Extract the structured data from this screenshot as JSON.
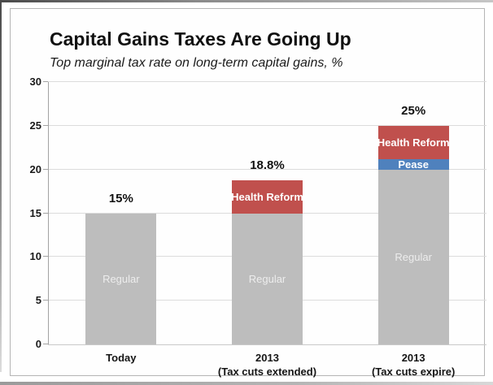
{
  "page": {
    "title": "Capital Gains Taxes Are Going Up",
    "subtitle": "Top marginal tax rate on long-term capital gains, %"
  },
  "colors": {
    "regular_bar": "#BDBDBD",
    "pease_bar": "#4F81BD",
    "health_reform_bar": "#C0504D",
    "gridline": "#DCDCDC",
    "axis_line": "#A3A3A3",
    "baseline": "#C9C9C9",
    "panel_border": "#B5B5B5",
    "total_label_text": "#111111",
    "regular_label_text": "#EDEDED",
    "segment_label_text": "#FFFFFF"
  },
  "chart_data": {
    "type": "bar",
    "stacked": true,
    "title": "Capital Gains Taxes Are Going Up",
    "subtitle": "Top marginal tax rate on long-term capital gains, %",
    "unit": "%",
    "categories": [
      {
        "line1": "Today",
        "line2": ""
      },
      {
        "line1": "2013",
        "line2": "(Tax cuts extended)"
      },
      {
        "line1": "2013",
        "line2": "(Tax cuts expire)"
      }
    ],
    "series": [
      {
        "name": "Regular",
        "color": "#BDBDBD",
        "label_color": "#EDEDED",
        "label_bold": false,
        "values": [
          15,
          15,
          20
        ]
      },
      {
        "name": "Pease",
        "color": "#4F81BD",
        "label_color": "#FFFFFF",
        "label_bold": true,
        "values": [
          0,
          0,
          1.2
        ]
      },
      {
        "name": "Health Reform",
        "color": "#C0504D",
        "label_color": "#FFFFFF",
        "label_bold": true,
        "values": [
          0,
          3.8,
          3.8
        ]
      }
    ],
    "totals": [
      15,
      18.8,
      25
    ],
    "total_labels": [
      "15%",
      "18.8%",
      "25%"
    ],
    "ylim": [
      0,
      30
    ],
    "yticks": [
      0,
      5,
      10,
      15,
      20,
      25,
      30
    ],
    "grid": true,
    "legend_position": "none"
  }
}
